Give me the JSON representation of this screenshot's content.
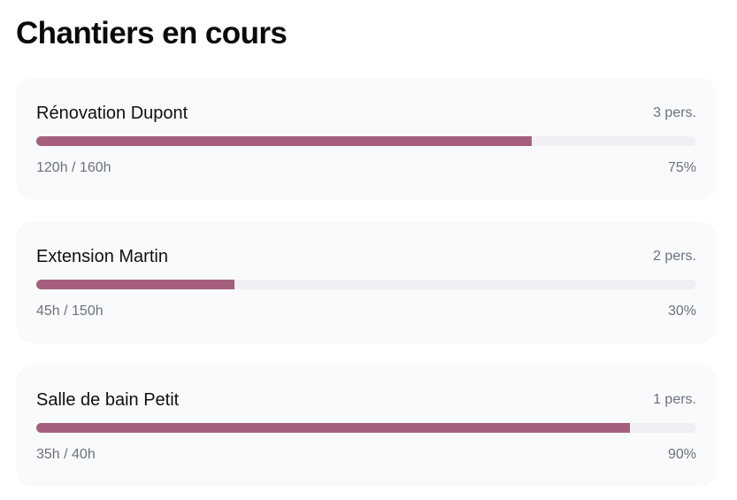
{
  "header": {
    "title": "Chantiers en cours"
  },
  "projects": [
    {
      "name": "Rénovation Dupont",
      "people": "3 pers.",
      "hours": "120h / 160h",
      "progress": {
        "value": 75,
        "label": "75%"
      }
    },
    {
      "name": "Extension Martin",
      "people": "2 pers.",
      "hours": "45h / 150h",
      "progress": {
        "value": 30,
        "label": "30%"
      }
    },
    {
      "name": "Salle de bain Petit",
      "people": "1 pers.",
      "hours": "35h / 40h",
      "progress": {
        "value": 90,
        "label": "90%"
      }
    }
  ]
}
